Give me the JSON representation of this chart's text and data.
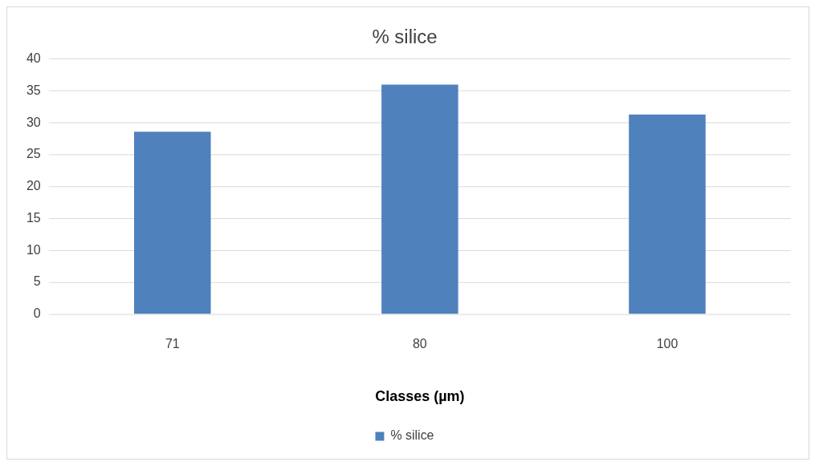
{
  "chart_data": {
    "type": "bar",
    "title": "% silice",
    "xlabel": "Classes (µm)",
    "categories": [
      "71",
      "80",
      "100"
    ],
    "series": [
      {
        "name": "% silice",
        "color": "#4f81bd",
        "values": [
          28.6,
          36,
          31.3
        ]
      }
    ],
    "ylim": [
      0,
      40
    ],
    "yticks": [
      0,
      5,
      10,
      15,
      20,
      25,
      30,
      35,
      40
    ],
    "grid": "y",
    "legend": "bottom"
  }
}
